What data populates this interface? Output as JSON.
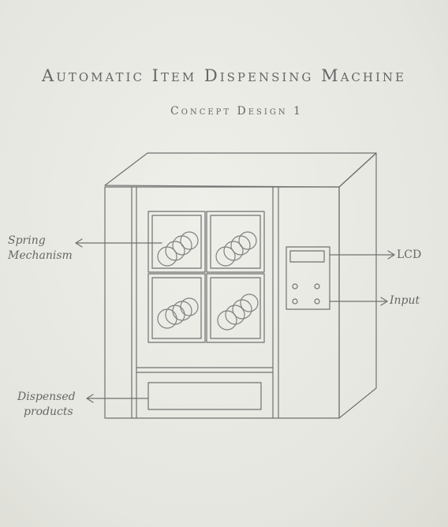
{
  "diagram": {
    "title": "Automatic Item Dispensing Machine",
    "subtitle": "Concept Design 1",
    "labels": {
      "spring_line1": "Spring",
      "spring_line2": "Mechanism",
      "lcd": "LCD",
      "input": "Input",
      "dispensed_line1": "Dispensed",
      "dispensed_line2": "products"
    }
  },
  "colors": {
    "paper": "#e9e9e4",
    "pencil": "#6b6b6b"
  }
}
